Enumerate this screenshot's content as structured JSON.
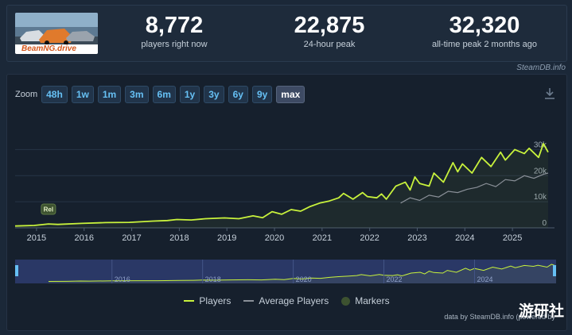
{
  "game": {
    "logo_text": "BeamNG.drive"
  },
  "stats": [
    {
      "value": "8,772",
      "label": "players right now"
    },
    {
      "value": "22,875",
      "label": "24-hour peak"
    },
    {
      "value": "32,320",
      "label": "all-time peak 2 months ago"
    }
  ],
  "credit_top": "SteamDB.info",
  "zoom": {
    "label": "Zoom",
    "options": [
      "48h",
      "1w",
      "1m",
      "3m",
      "6m",
      "1y",
      "3y",
      "6y",
      "9y",
      "max"
    ],
    "selected": "max"
  },
  "marker": {
    "label": "Rel",
    "x": 2015.3
  },
  "legend": {
    "players": "Players",
    "average": "Average Players",
    "markers": "Markers"
  },
  "credit_bottom": "data by SteamDB.info (powered by",
  "watermark": "游研社",
  "colors": {
    "players": "#c8f23c",
    "average": "#8a9098",
    "markers": "#3d5230",
    "accent": "#66c0f4"
  },
  "chart_data": {
    "type": "line",
    "x_axis": {
      "type": "date",
      "range": [
        2014.6,
        2025.8
      ],
      "ticks": [
        "2015",
        "2016",
        "2017",
        "2018",
        "2019",
        "2020",
        "2021",
        "2022",
        "2023",
        "2024",
        "2025"
      ]
    },
    "y_axis": {
      "range": [
        0,
        35000
      ],
      "ticks": [
        0,
        10000,
        20000,
        30000
      ],
      "tick_labels": [
        "0",
        "10k",
        "20k",
        "30k"
      ]
    },
    "grid": true,
    "legend_position": "bottom-center",
    "series": [
      {
        "name": "Players",
        "x": [
          2014.6,
          2015.0,
          2015.3,
          2015.5,
          2016.0,
          2016.5,
          2017.0,
          2017.5,
          2017.8,
          2018.0,
          2018.3,
          2018.6,
          2019.0,
          2019.3,
          2019.6,
          2019.8,
          2020.0,
          2020.2,
          2020.4,
          2020.6,
          2020.8,
          2021.0,
          2021.2,
          2021.4,
          2021.5,
          2021.7,
          2021.9,
          2022.0,
          2022.2,
          2022.3,
          2022.4,
          2022.6,
          2022.8,
          2022.9,
          2023.0,
          2023.1,
          2023.3,
          2023.4,
          2023.6,
          2023.8,
          2023.9,
          2024.0,
          2024.2,
          2024.4,
          2024.6,
          2024.8,
          2024.9,
          2025.1,
          2025.3,
          2025.4,
          2025.6,
          2025.7,
          2025.8
        ],
        "values": [
          700,
          900,
          1500,
          1300,
          1700,
          2000,
          2100,
          2600,
          2800,
          3200,
          3000,
          3500,
          3800,
          3500,
          4600,
          3900,
          6200,
          5200,
          7000,
          6400,
          8200,
          9500,
          10300,
          11500,
          13200,
          11000,
          13500,
          12000,
          11500,
          13000,
          11000,
          16000,
          17500,
          14500,
          19500,
          17000,
          16000,
          21000,
          17500,
          25000,
          21500,
          24500,
          21000,
          27000,
          23500,
          29000,
          26000,
          30000,
          28500,
          30500,
          27000,
          32300,
          29000
        ]
      },
      {
        "name": "Average Players",
        "x": [
          2022.7,
          2022.9,
          2023.1,
          2023.3,
          2023.5,
          2023.7,
          2023.9,
          2024.1,
          2024.3,
          2024.5,
          2024.7,
          2024.9,
          2025.1,
          2025.3,
          2025.5,
          2025.7,
          2025.8
        ],
        "values": [
          9500,
          11500,
          10500,
          12500,
          11800,
          14000,
          13500,
          14800,
          15500,
          17000,
          15800,
          18500,
          18000,
          20000,
          19000,
          20500,
          21000
        ]
      }
    ],
    "navigator": {
      "ticks": [
        "2016",
        "2018",
        "2020",
        "2022",
        "2024"
      ]
    }
  }
}
